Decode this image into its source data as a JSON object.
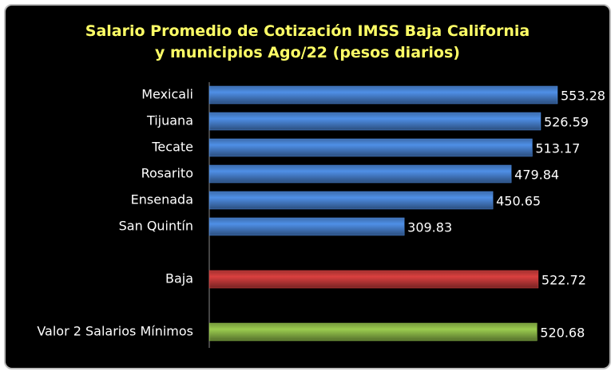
{
  "chart_data": {
    "type": "bar",
    "orientation": "horizontal",
    "title": "Salario Promedio de Cotización IMSS Baja California y municipios Ago/22 (pesos diarios)",
    "categories": [
      "Mexicali",
      "Tijuana",
      "Tecate",
      "Rosarito",
      "Ensenada",
      "San Quintín",
      null,
      "Baja",
      null,
      "Valor 2 Salarios Mínimos"
    ],
    "values": [
      553.28,
      526.59,
      513.17,
      479.84,
      450.65,
      309.83,
      null,
      522.72,
      null,
      520.68
    ],
    "colors": [
      "#4f8fe6",
      "#4f8fe6",
      "#4f8fe6",
      "#4f8fe6",
      "#4f8fe6",
      "#4f8fe6",
      null,
      "#d9403f",
      null,
      "#9bcc4f"
    ]
  }
}
